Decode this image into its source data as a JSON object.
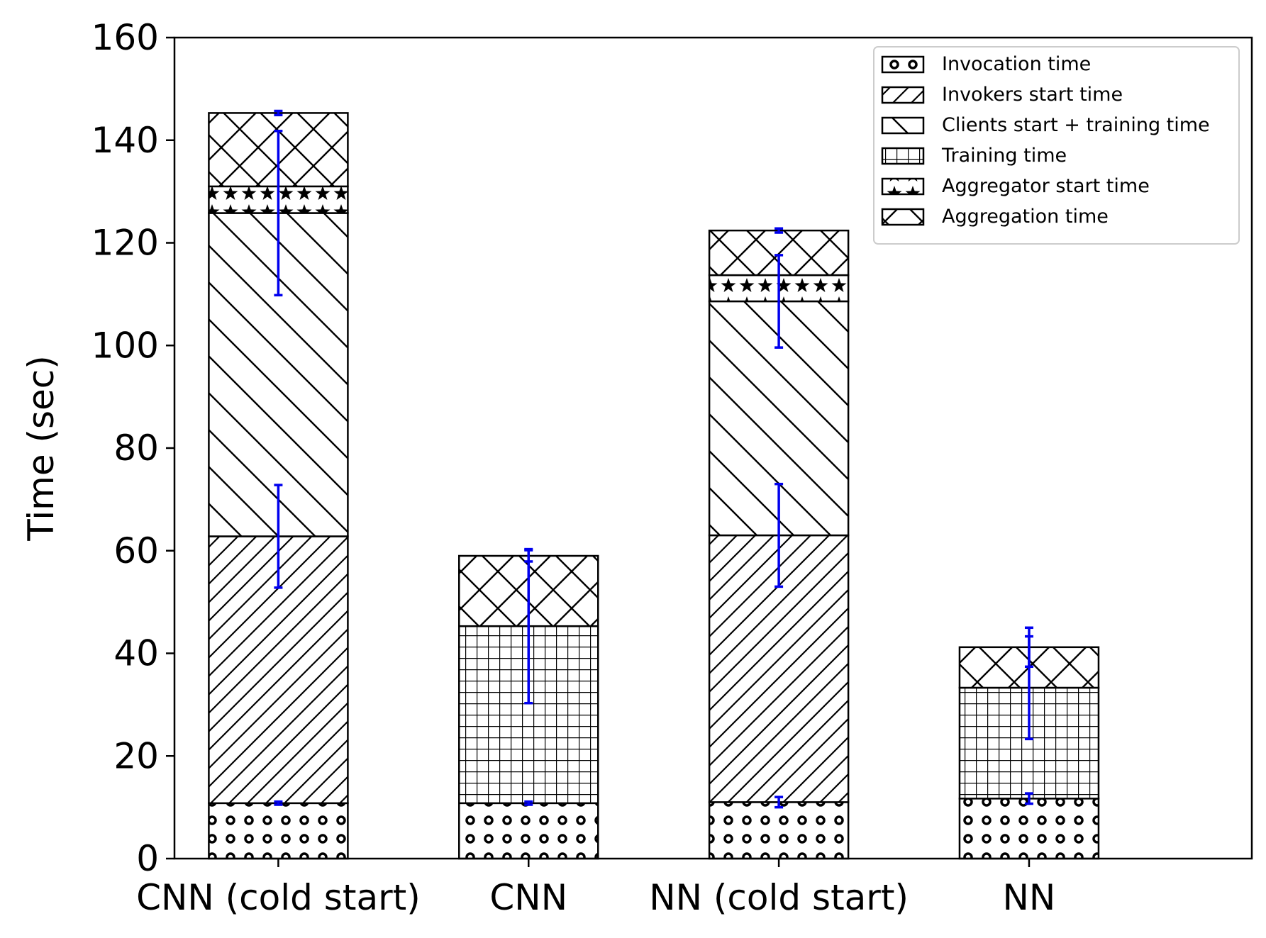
{
  "chart_data": {
    "type": "bar",
    "stacked": true,
    "title": "",
    "xlabel": "",
    "ylabel": "Time (sec)",
    "ylim": [
      0,
      160
    ],
    "yticks": [
      0,
      20,
      40,
      60,
      80,
      100,
      120,
      140,
      160
    ],
    "categories": [
      "CNN (cold start)",
      "CNN",
      "NN (cold start)",
      "NN"
    ],
    "legend_position": "top-right",
    "grid": false,
    "series": [
      {
        "name": "Invocation time",
        "hatch": "circles",
        "values": [
          10.8,
          10.8,
          11.0,
          11.7
        ],
        "errors": [
          0.3,
          0.3,
          1.0,
          1.0
        ]
      },
      {
        "name": "Invokers start time",
        "hatch": "forward-diagonal",
        "values": [
          52.0,
          0,
          52.0,
          0
        ],
        "errors": [
          10.0,
          0,
          10.0,
          0
        ]
      },
      {
        "name": "Clients start + training time",
        "hatch": "back-diagonal",
        "values": [
          63.0,
          0,
          45.6,
          0
        ],
        "errors": [
          16.0,
          0,
          9.0,
          0
        ]
      },
      {
        "name": "Training time",
        "hatch": "grid",
        "values": [
          0,
          34.5,
          0,
          21.6
        ],
        "errors": [
          0,
          15.0,
          0,
          10.0
        ]
      },
      {
        "name": "Aggregator start time",
        "hatch": "stars",
        "values": [
          5.2,
          0,
          5.1,
          0
        ],
        "errors": [
          0,
          0,
          0,
          0
        ]
      },
      {
        "name": "Aggregation time",
        "hatch": "crosshatch",
        "values": [
          14.3,
          13.7,
          8.7,
          7.9
        ],
        "errors": [
          0.4,
          1.1,
          0.4,
          3.8
        ]
      }
    ],
    "colors": {
      "errorbar": "#0000ee",
      "edge": "#000000",
      "fill": "#ffffff"
    }
  }
}
